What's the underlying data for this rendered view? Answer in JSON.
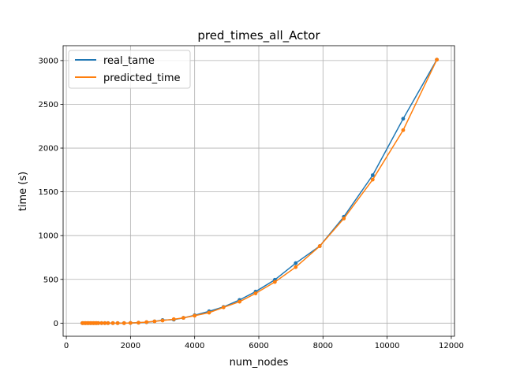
{
  "chart_data": {
    "type": "line",
    "title": "pred_times_all_Actor",
    "xlabel": "num_nodes",
    "ylabel": "time (s)",
    "xlim": [
      -100,
      12100
    ],
    "ylim": [
      -150,
      3170
    ],
    "xticks": [
      0,
      2000,
      4000,
      6000,
      8000,
      10000,
      12000
    ],
    "yticks": [
      0,
      500,
      1000,
      1500,
      2000,
      2500,
      3000
    ],
    "grid": true,
    "legend_position": "top-left",
    "series": [
      {
        "name": "real_tame",
        "color": "#1f77b4",
        "x": [
          500,
          550,
          600,
          650,
          700,
          750,
          800,
          850,
          900,
          950,
          1000,
          1100,
          1200,
          1300,
          1450,
          1600,
          1800,
          2000,
          2250,
          2500,
          2750,
          3000,
          3350,
          3650,
          4000,
          4450,
          4900,
          5400,
          5900,
          6500,
          7150,
          7900,
          8650,
          9550,
          10500,
          11550
        ],
        "y": [
          0,
          0,
          0,
          0,
          0,
          0,
          0,
          0,
          0,
          0,
          0,
          0,
          0,
          0,
          0,
          0,
          0,
          2,
          5,
          10,
          20,
          35,
          40,
          60,
          90,
          135,
          185,
          265,
          360,
          495,
          685,
          880,
          1215,
          1690,
          2335,
          3010
        ]
      },
      {
        "name": "predicted_time",
        "color": "#ff7f0e",
        "x": [
          500,
          550,
          600,
          650,
          700,
          750,
          800,
          850,
          900,
          950,
          1000,
          1100,
          1200,
          1300,
          1450,
          1600,
          1800,
          2000,
          2250,
          2500,
          2750,
          3000,
          3350,
          3650,
          4000,
          4450,
          4900,
          5400,
          5900,
          6500,
          7150,
          7900,
          8650,
          9550,
          10500,
          11550
        ],
        "y": [
          0,
          0,
          0,
          0,
          0,
          0,
          0,
          0,
          0,
          0,
          0,
          0,
          0,
          0,
          0,
          0,
          0,
          2,
          5,
          12,
          20,
          30,
          45,
          60,
          85,
          120,
          180,
          245,
          340,
          470,
          640,
          880,
          1195,
          1640,
          2205,
          3010
        ]
      }
    ]
  }
}
